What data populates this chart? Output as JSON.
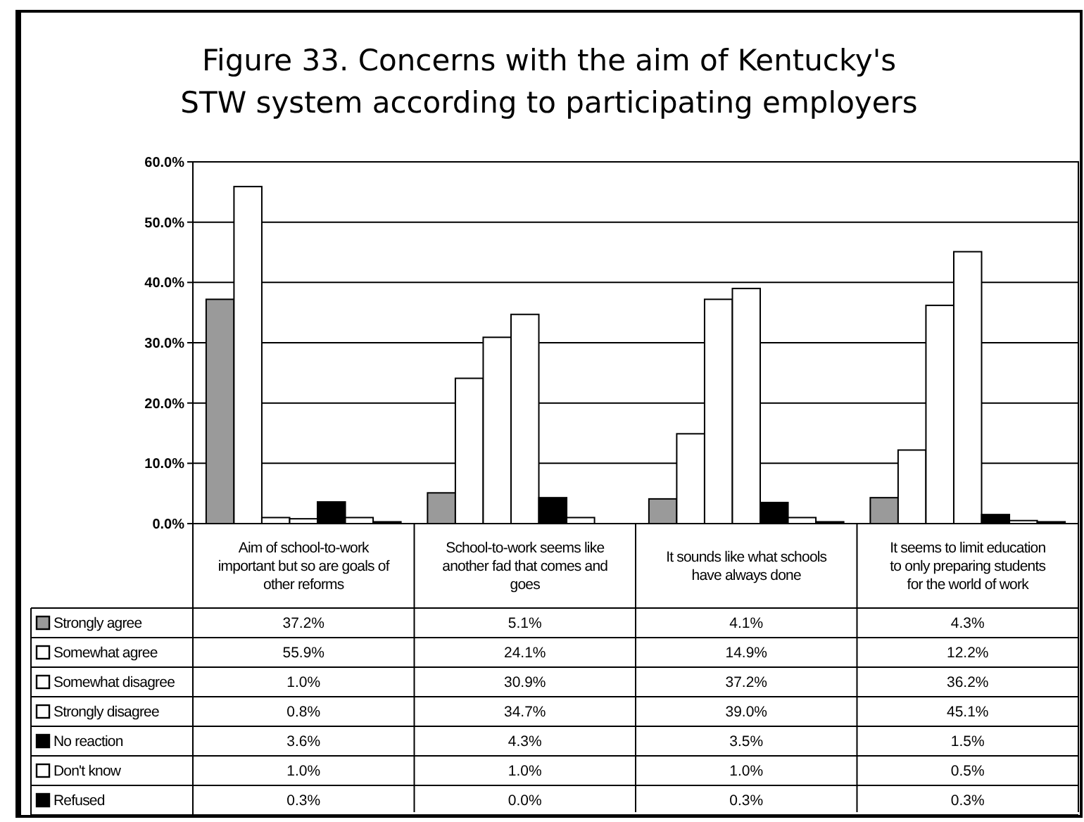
{
  "chart_data": {
    "type": "bar",
    "title": "Figure 33. Concerns with the aim of Kentucky's STW system according to participating employers",
    "categories": [
      "Aim of school-to-work important but so are goals of other reforms",
      "School-to-work seems like another fad that comes and goes",
      "It sounds like what schools have always done",
      "It seems to limit education to only preparing students for the world of work"
    ],
    "series": [
      {
        "name": "Strongly agree",
        "color": "#9a9a9a",
        "values": [
          37.2,
          5.1,
          4.1,
          4.3
        ],
        "value_labels": [
          "37.2%",
          "5.1%",
          "4.1%",
          "4.3%"
        ]
      },
      {
        "name": "Somewhat agree",
        "color": "#ffffff",
        "values": [
          55.9,
          24.1,
          14.9,
          12.2
        ],
        "value_labels": [
          "55.9%",
          "24.1%",
          "14.9%",
          "12.2%"
        ]
      },
      {
        "name": "Somewhat disagree",
        "color": "#ffffff",
        "values": [
          1.0,
          30.9,
          37.2,
          36.2
        ],
        "value_labels": [
          "1.0%",
          "30.9%",
          "37.2%",
          "36.2%"
        ]
      },
      {
        "name": "Strongly disagree",
        "color": "#ffffff",
        "values": [
          0.8,
          34.7,
          39.0,
          45.1
        ],
        "value_labels": [
          "0.8%",
          "34.7%",
          "39.0%",
          "45.1%"
        ]
      },
      {
        "name": "No reaction",
        "color": "#000000",
        "values": [
          3.6,
          4.3,
          3.5,
          1.5
        ],
        "value_labels": [
          "3.6%",
          "4.3%",
          "3.5%",
          "1.5%"
        ]
      },
      {
        "name": "Don't know",
        "color": "#ffffff",
        "values": [
          1.0,
          1.0,
          1.0,
          0.5
        ],
        "value_labels": [
          "1.0%",
          "1.0%",
          "1.0%",
          "0.5%"
        ]
      },
      {
        "name": "Refused",
        "color": "#000000",
        "values": [
          0.3,
          0.0,
          0.3,
          0.3
        ],
        "value_labels": [
          "0.3%",
          "0.0%",
          "0.3%",
          "0.3%"
        ]
      }
    ],
    "ylim": [
      0,
      60
    ],
    "yticks": [
      {
        "value": 0,
        "label": "0.0%"
      },
      {
        "value": 10,
        "label": "10.0%"
      },
      {
        "value": 20,
        "label": "20.0%"
      },
      {
        "value": 30,
        "label": "30.0%"
      },
      {
        "value": 40,
        "label": "40.0%"
      },
      {
        "value": 50,
        "label": "50.0%"
      },
      {
        "value": 60,
        "label": "60.0%"
      }
    ],
    "grid": "y",
    "legend": "bottom"
  }
}
